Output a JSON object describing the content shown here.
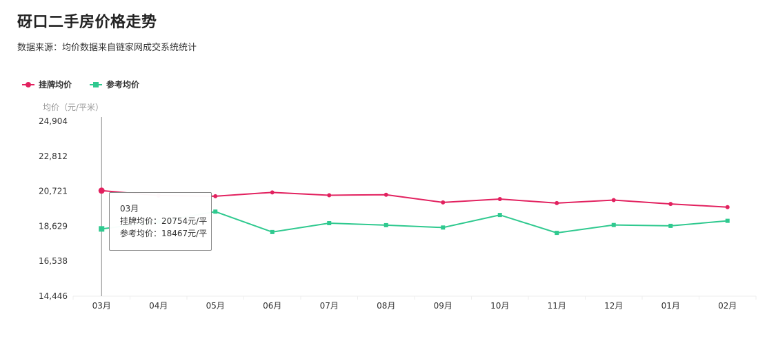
{
  "title": "砑口二手房价格走势",
  "subtitle": "数据来源：均价数据来自链家网成交系统统计",
  "colors": {
    "listing": "#e2215f",
    "reference": "#2fc98f",
    "axis": "#999999",
    "grid": "#eeeeee"
  },
  "tooltip": {
    "month": "03月",
    "listing_line": "挂牌均价：20754元/平",
    "reference_line": "参考均价：18467元/平"
  },
  "chart_data": {
    "type": "line",
    "title": "",
    "ylabel": "均价（元/平米）",
    "xlabel": "",
    "categories": [
      "03月",
      "04月",
      "05月",
      "06月",
      "07月",
      "08月",
      "09月",
      "10月",
      "11月",
      "12月",
      "01月",
      "02月"
    ],
    "ylim": [
      14446,
      24904
    ],
    "yticks": [
      "24,904",
      "22,812",
      "20,721",
      "18,629",
      "16,538",
      "14,446"
    ],
    "ytick_values": [
      24904,
      22812,
      20721,
      18629,
      16538,
      14446
    ],
    "legend_position": "top-left",
    "grid": false,
    "series": [
      {
        "name": "挂牌均价",
        "marker": "circle",
        "values": [
          20754,
          20460,
          20420,
          20650,
          20480,
          20510,
          20050,
          20250,
          20010,
          20190,
          19960,
          19770
        ]
      },
      {
        "name": "参考均价",
        "marker": "square",
        "values": [
          18467,
          18900,
          19500,
          18280,
          18810,
          18690,
          18550,
          19300,
          18230,
          18700,
          18650,
          18950
        ]
      }
    ]
  }
}
